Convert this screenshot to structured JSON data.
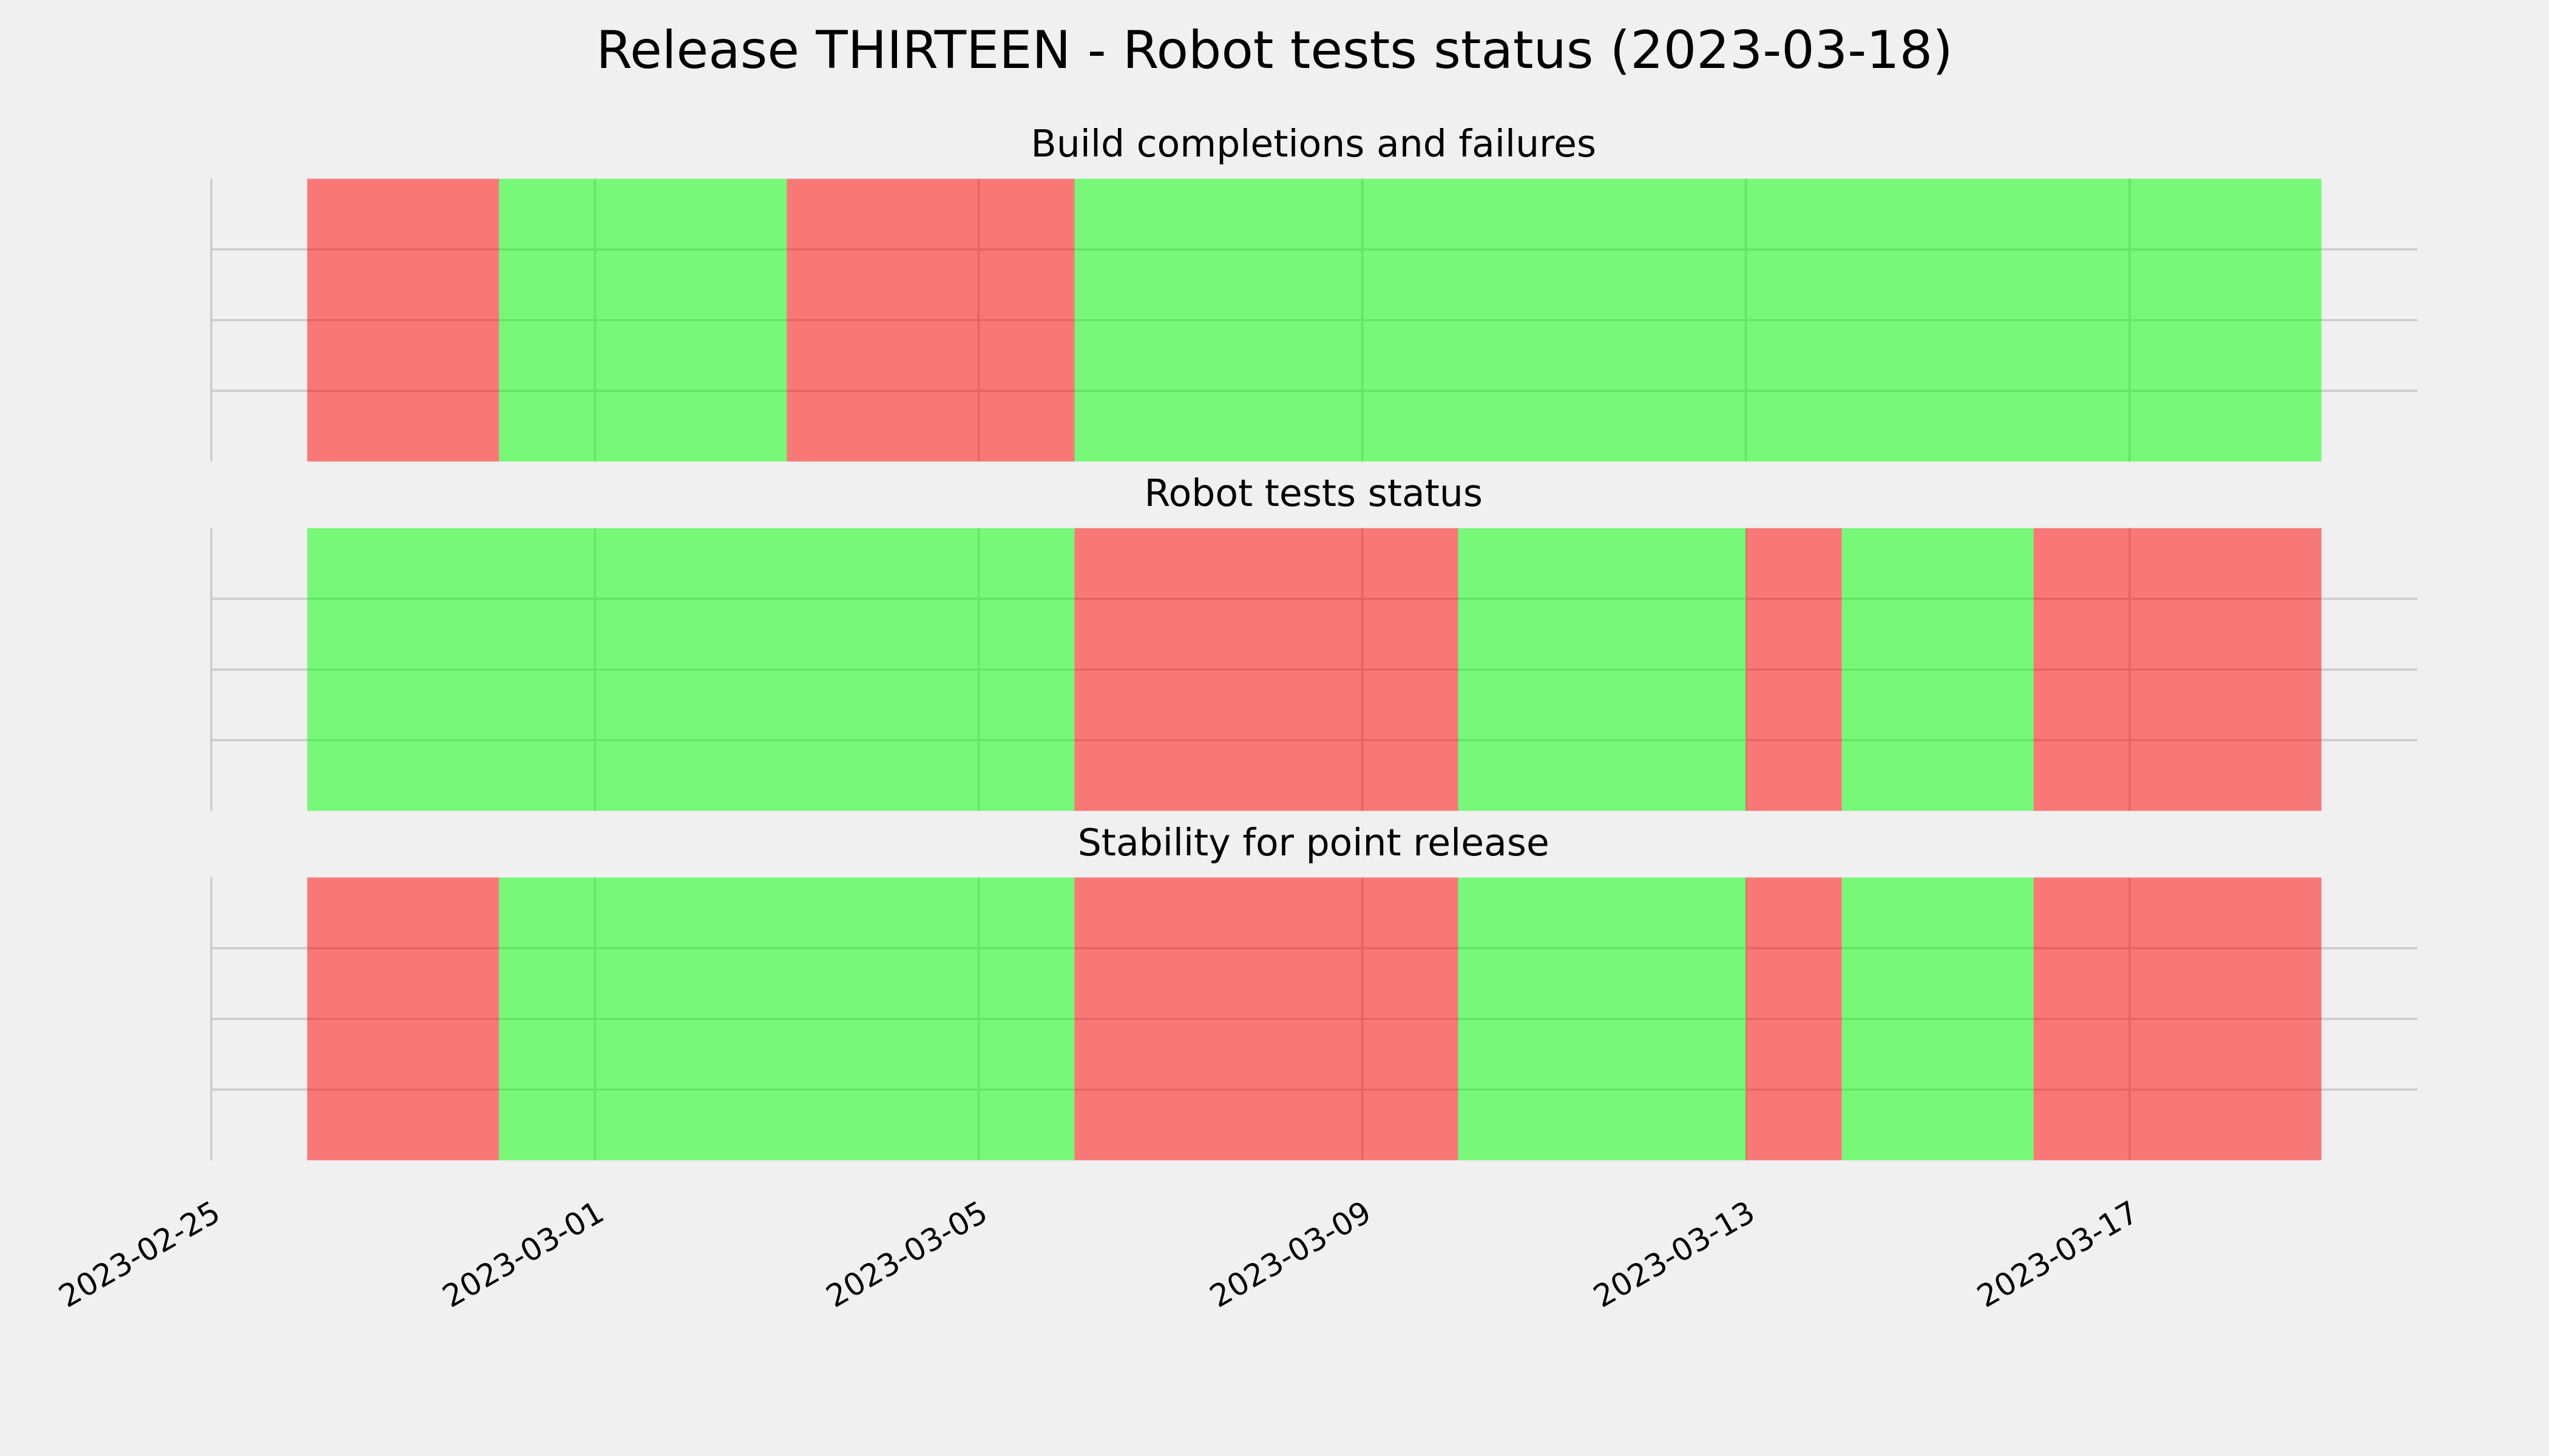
{
  "title": "Release THIRTEEN - Robot tests status (2023-03-18)",
  "chart_data": [
    {
      "type": "timeline",
      "title": "Build completions and failures",
      "x": [
        "2023-02-26",
        "2023-02-28",
        "2023-03-03",
        "2023-03-06",
        "2023-03-19"
      ],
      "colors": [
        "#ff0000",
        "#00ff00",
        "#ff0000",
        "#00ff00"
      ],
      "ylim": [
        0,
        1
      ],
      "yticks": [
        0.25,
        0.5,
        0.75
      ],
      "grid": true
    },
    {
      "type": "timeline",
      "title": "Robot tests status",
      "x": [
        "2023-02-26",
        "2023-03-06",
        "2023-03-10",
        "2023-03-13",
        "2023-03-14",
        "2023-03-16",
        "2023-03-19"
      ],
      "colors": [
        "#00ff00",
        "#ff0000",
        "#00ff00",
        "#ff0000",
        "#00ff00",
        "#ff0000"
      ],
      "ylim": [
        0,
        1
      ],
      "yticks": [
        0.25,
        0.5,
        0.75
      ],
      "grid": true
    },
    {
      "type": "timeline",
      "title": "Stability for point release",
      "x": [
        "2023-02-26",
        "2023-02-28",
        "2023-03-06",
        "2023-03-10",
        "2023-03-13",
        "2023-03-14",
        "2023-03-16",
        "2023-03-19"
      ],
      "colors": [
        "#ff0000",
        "#00ff00",
        "#ff0000",
        "#00ff00",
        "#ff0000",
        "#00ff00",
        "#ff0000"
      ],
      "ylim": [
        0,
        1
      ],
      "yticks": [
        0.25,
        0.5,
        0.75
      ],
      "grid": true,
      "xlim": [
        "2023-02-25",
        "2023-03-20"
      ],
      "xticks": [
        "2023-02-25",
        "2023-03-01",
        "2023-03-05",
        "2023-03-09",
        "2023-03-13",
        "2023-03-17"
      ]
    }
  ]
}
